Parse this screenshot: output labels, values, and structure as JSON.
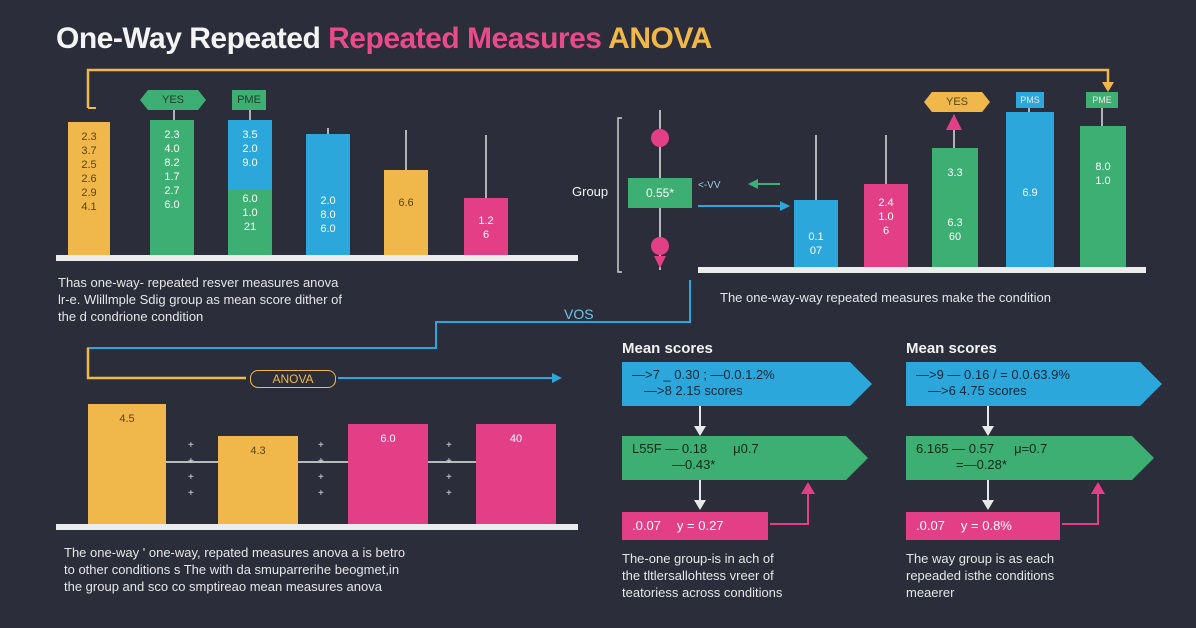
{
  "title": {
    "part1": "One-Way Repeated",
    "part2": "Repeated Measures",
    "part3": "ANOVA"
  },
  "colors": {
    "yellow": "#f0b84a",
    "green": "#3daf72",
    "blue": "#2ca7dc",
    "pink": "#e23f86",
    "background": "#2b2d3a"
  },
  "top_left": {
    "tags": [
      "YES",
      "PME"
    ],
    "bars": [
      {
        "lines": [
          "2.3",
          "3.7",
          "2.5",
          "2.6",
          "2.9",
          "4.1"
        ]
      },
      {
        "lines": [
          "2.3",
          "4.0",
          "8.2",
          "1.7",
          "2.7",
          "6.0"
        ]
      },
      {
        "lines": [
          "3.5",
          "2.0",
          "9.0",
          "6.0",
          "1.0",
          "21"
        ]
      },
      {
        "lines": [
          "2.0",
          "8.0",
          "6.0"
        ]
      },
      {
        "lines": [
          "6.6"
        ]
      },
      {
        "lines": [
          "1.2",
          "6"
        ]
      }
    ],
    "description": [
      "Thas one-way- repeated resver measures anova",
      "lr-e. Wlillmple Sdig group as mean score dither of",
      "the d condrione condition"
    ]
  },
  "top_right": {
    "group_label": "Group",
    "group_value": "0.55*",
    "connector_label": "<-VV",
    "tags": [
      "YES",
      "PMS",
      "PME"
    ],
    "bars": [
      {
        "lines": [
          "0.1",
          "07"
        ]
      },
      {
        "lines": [
          "2.4",
          "1.0",
          "6"
        ]
      },
      {
        "lines": [
          "3.3",
          "6.3",
          "60"
        ]
      },
      {
        "lines": [
          "6.9"
        ]
      },
      {
        "lines": [
          "8.0",
          "1.0"
        ]
      }
    ],
    "description": "The one-way-way repeated measures make the condition"
  },
  "middle": {
    "vos_label": "VOS",
    "anova_label": "ANOVA"
  },
  "bottom_left": {
    "bars": [
      {
        "label": "4.5"
      },
      {
        "label": "4.3"
      },
      {
        "label": "6.0"
      },
      {
        "label": "40"
      }
    ],
    "description": [
      "The one-way ' one-way, repated measures anova a is betro",
      "to other conditions s The with da smuparrerihe beogmet,in",
      "the group and sco co smptireao mean measures anova"
    ]
  },
  "mean_scores_left": {
    "title": "Mean scores",
    "box1": [
      "—>7  _  0.30  ; —0.0.1.2%",
      "—>8    2.15 scores"
    ],
    "box2": [
      "L55F   —  0.18",
      "—0.43*",
      "μ0.7"
    ],
    "box3": [
      ".0.07",
      "y = 0.27"
    ],
    "description": [
      "The-one group-is in ach of",
      "the tltlersallohtess vreer of",
      "teatoriess across conditions"
    ]
  },
  "mean_scores_right": {
    "title": "Mean scores",
    "box1": [
      "—>9  —  0.16 / = 0.0.63.9%",
      "—>6    4.75 scores"
    ],
    "box2": [
      "6.165  —  0.57",
      "=—0.28*",
      "μ=0.7"
    ],
    "box3": [
      ".0.07",
      "y = 0.8%"
    ],
    "description": [
      "The way group is as each",
      "repeaded isthe conditions",
      "meaerer"
    ]
  }
}
